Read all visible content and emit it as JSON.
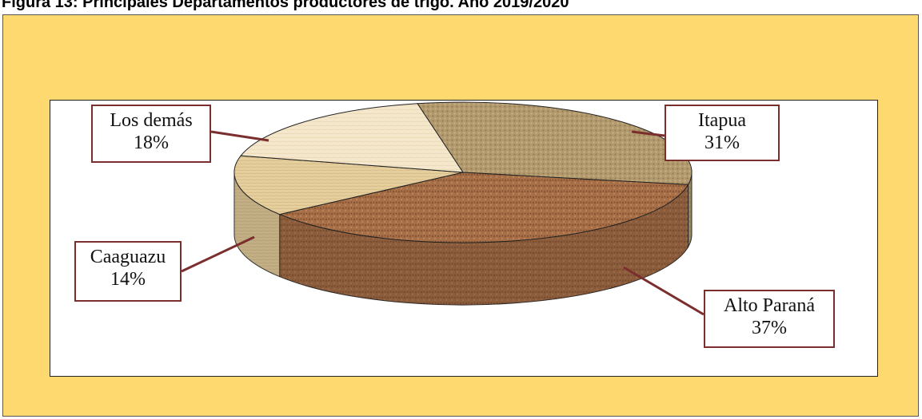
{
  "figure": {
    "title": "Figura 13: Principales Departamentos productores de trigo. Año 2019/2020"
  },
  "chart_data": {
    "type": "pie",
    "style": "3d",
    "slices": [
      {
        "name": "Itapua",
        "value": 31,
        "label": "31%",
        "color": "#b39a6e"
      },
      {
        "name": "Alto Paraná",
        "value": 37,
        "label": "37%",
        "color": "#a76f47"
      },
      {
        "name": "Caaguazu",
        "value": 14,
        "label": "14%",
        "color": "#e6cf9e"
      },
      {
        "name": "Los demás",
        "value": 18,
        "label": "18%",
        "color": "#f5e7cc"
      }
    ]
  }
}
